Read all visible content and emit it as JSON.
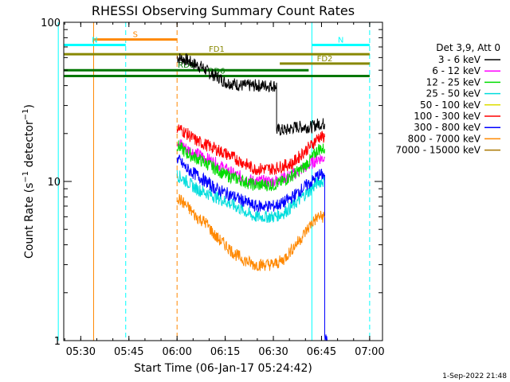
{
  "chart_data": {
    "type": "line",
    "title": "RHESSI Observing Summary Count Rates",
    "ylabel": "Count Rate (s⁻¹ detector⁻¹)",
    "ylabel_main": "Count Rate (s",
    "ylabel_sup1": "−1",
    "ylabel_mid": " detector",
    "ylabel_sup2": "−1",
    "ylabel_end": ")",
    "xlabel": "Start Time (06-Jan-17 05:24:42)",
    "y_scale": "log",
    "ylim": [
      1,
      100
    ],
    "y_ticks": [
      {
        "value": 1,
        "label": "1"
      },
      {
        "value": 10,
        "label": "10"
      },
      {
        "value": 100,
        "label": "100"
      }
    ],
    "xlim": [
      "05:24:42",
      "07:04:00"
    ],
    "x_ticks": [
      {
        "value": "05:30",
        "label": "05:30"
      },
      {
        "value": "05:45",
        "label": "05:45"
      },
      {
        "value": "06:00",
        "label": "06:00"
      },
      {
        "value": "06:15",
        "label": "06:15"
      },
      {
        "value": "06:30",
        "label": "06:30"
      },
      {
        "value": "06:45",
        "label": "06:45"
      },
      {
        "value": "07:00",
        "label": "07:00"
      }
    ],
    "legend_header": "Det 3,9, Att 0",
    "legend_position": "right",
    "series": [
      {
        "name": "3 - 6 keV",
        "color": "#000000",
        "x": [
          "06:00",
          "06:03",
          "06:05",
          "06:08",
          "06:10",
          "06:13",
          "06:15",
          "06:18",
          "06:20",
          "06:23",
          "06:26",
          "06:28",
          "06:31",
          "06:31",
          "06:34",
          "06:37",
          "06:40",
          "06:42",
          "06:44",
          "06:46"
        ],
        "y": [
          60,
          58,
          55,
          52,
          48,
          45,
          42,
          41,
          40,
          40,
          40,
          40,
          40,
          21,
          21,
          22,
          22,
          22,
          23,
          23
        ]
      },
      {
        "name": "6 - 12 keV",
        "color": "#ff00ff",
        "x": [
          "06:00",
          "06:03",
          "06:06",
          "06:09",
          "06:12",
          "06:15",
          "06:18",
          "06:21",
          "06:24",
          "06:27",
          "06:30",
          "06:33",
          "06:36",
          "06:39",
          "06:42",
          "06:44",
          "06:46"
        ],
        "y": [
          18,
          16,
          15,
          14,
          13,
          12,
          11,
          10.5,
          10,
          10,
          10,
          10.5,
          11,
          12,
          13,
          14,
          14
        ]
      },
      {
        "name": "12 - 25 keV",
        "color": "#00dd00",
        "x": [
          "06:00",
          "06:03",
          "06:06",
          "06:09",
          "06:12",
          "06:15",
          "06:18",
          "06:21",
          "06:24",
          "06:27",
          "06:30",
          "06:33",
          "06:36",
          "06:39",
          "06:42",
          "06:44",
          "06:46"
        ],
        "y": [
          17,
          15,
          14,
          13,
          12,
          11,
          10.5,
          10,
          9.5,
          9.5,
          9.5,
          10,
          11,
          12,
          14,
          16,
          16
        ]
      },
      {
        "name": "25 - 50 keV",
        "color": "#00dddd",
        "x": [
          "06:00",
          "06:03",
          "06:06",
          "06:09",
          "06:12",
          "06:15",
          "06:18",
          "06:21",
          "06:24",
          "06:27",
          "06:30",
          "06:33",
          "06:36",
          "06:39",
          "06:42",
          "06:44",
          "06:46"
        ],
        "y": [
          11,
          10,
          9,
          8.5,
          8,
          7.5,
          7,
          6.5,
          6,
          6,
          6,
          6.3,
          7,
          8,
          9,
          10,
          10
        ]
      },
      {
        "name": "50 - 100 keV",
        "color": "#dddd00",
        "x": [],
        "y": []
      },
      {
        "name": "100 - 300 keV",
        "color": "#ff0000",
        "x": [
          "06:00",
          "06:03",
          "06:06",
          "06:09",
          "06:12",
          "06:15",
          "06:18",
          "06:21",
          "06:24",
          "06:27",
          "06:30",
          "06:33",
          "06:36",
          "06:39",
          "06:42",
          "06:44",
          "06:46"
        ],
        "y": [
          22,
          20,
          18,
          17,
          16,
          15,
          14,
          13,
          12,
          12,
          12,
          12.5,
          13,
          15,
          17,
          19,
          19
        ]
      },
      {
        "name": "300 - 800 keV",
        "color": "#0000ff",
        "x": [
          "06:00",
          "06:03",
          "06:06",
          "06:09",
          "06:12",
          "06:15",
          "06:18",
          "06:21",
          "06:24",
          "06:27",
          "06:30",
          "06:33",
          "06:36",
          "06:39",
          "06:42",
          "06:44",
          "06:46",
          "06:46",
          "06:47"
        ],
        "y": [
          14,
          12,
          11,
          10,
          9,
          8.5,
          8,
          7.5,
          7,
          7,
          7,
          7.3,
          8,
          9,
          10,
          11,
          11,
          1,
          1
        ]
      },
      {
        "name": "800 - 7000 keV",
        "color": "#ff8800",
        "x": [
          "06:00",
          "06:03",
          "06:06",
          "06:09",
          "06:12",
          "06:15",
          "06:18",
          "06:21",
          "06:24",
          "06:27",
          "06:30",
          "06:33",
          "06:36",
          "06:39",
          "06:42",
          "06:44",
          "06:46"
        ],
        "y": [
          8,
          7,
          6,
          5.5,
          4.5,
          4,
          3.5,
          3.2,
          3,
          3,
          3,
          3.2,
          3.8,
          4.5,
          5.5,
          6,
          6
        ]
      },
      {
        "name": "7000 - 15000 keV",
        "color": "#aa7700",
        "x": [],
        "y": []
      }
    ],
    "events": [
      {
        "label": "S",
        "type": "bar",
        "color": "#ff8800",
        "x": [
          "05:34",
          "06:00"
        ],
        "y": 78
      },
      {
        "label": "N",
        "type": "bar",
        "color": "#00ffff",
        "x": [
          "05:23",
          "05:44"
        ],
        "y": 72
      },
      {
        "label": "N",
        "type": "bar",
        "color": "#00ffff",
        "x": [
          "06:42",
          "07:00"
        ],
        "y": 72
      },
      {
        "label": "FD1",
        "type": "bar",
        "color": "#888800",
        "x": [
          "05:23",
          "07:00"
        ],
        "y": 63
      },
      {
        "label": "FD2",
        "type": "bar",
        "color": "#888800",
        "x": [
          "06:32",
          "07:00"
        ],
        "y": 55
      },
      {
        "label": "RD0",
        "type": "bar",
        "color": "#007700",
        "x": [
          "05:23",
          "06:41"
        ],
        "y": 50
      },
      {
        "label": "RD6",
        "type": "bar",
        "color": "#007700",
        "x": [
          "05:23",
          "07:00"
        ],
        "y": 46
      }
    ],
    "vlines": [
      {
        "x": "05:23",
        "color": "#00ffff",
        "style": "solid"
      },
      {
        "x": "05:34",
        "color": "#ff8800",
        "style": "solid"
      },
      {
        "x": "05:44",
        "color": "#00ffff",
        "style": "dashed"
      },
      {
        "x": "06:00",
        "color": "#ff8800",
        "style": "dashed"
      },
      {
        "x": "06:42",
        "color": "#00ffff",
        "style": "solid"
      },
      {
        "x": "07:00",
        "color": "#00ffff",
        "style": "dashed"
      }
    ],
    "footer": "1-Sep-2022 21:48"
  }
}
